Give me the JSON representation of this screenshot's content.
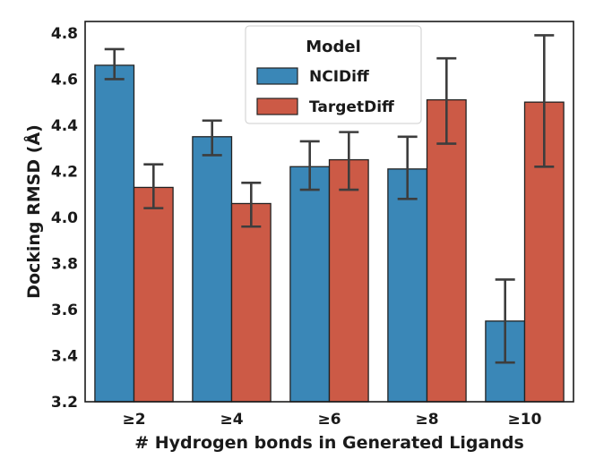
{
  "chart_data": {
    "type": "bar",
    "title": "",
    "xlabel": "# Hydrogen bonds in Generated Ligands",
    "ylabel": "Docking RMSD (Å)",
    "ylim": [
      3.2,
      4.85
    ],
    "yticks": [
      3.2,
      3.4,
      3.6,
      3.8,
      4.0,
      4.2,
      4.4,
      4.6,
      4.8
    ],
    "ytick_labels": [
      "3.2",
      "3.4",
      "3.6",
      "3.8",
      "4.0",
      "4.2",
      "4.4",
      "4.6",
      "4.8"
    ],
    "categories": [
      "≥2",
      "≥4",
      "≥6",
      "≥8",
      "≥10"
    ],
    "legend": {
      "title": "Model",
      "position": "top-center"
    },
    "series": [
      {
        "name": "NCIDiff",
        "color": "#3a87b7",
        "values": [
          4.66,
          4.35,
          4.22,
          4.21,
          3.55
        ],
        "err_low": [
          4.6,
          4.27,
          4.12,
          4.08,
          3.37
        ],
        "err_high": [
          4.73,
          4.42,
          4.33,
          4.35,
          3.73
        ]
      },
      {
        "name": "TargetDiff",
        "color": "#cc5a46",
        "values": [
          4.13,
          4.06,
          4.25,
          4.51,
          4.5
        ],
        "err_low": [
          4.04,
          3.96,
          4.12,
          4.32,
          4.22
        ],
        "err_high": [
          4.23,
          4.15,
          4.37,
          4.69,
          4.79
        ]
      }
    ]
  }
}
